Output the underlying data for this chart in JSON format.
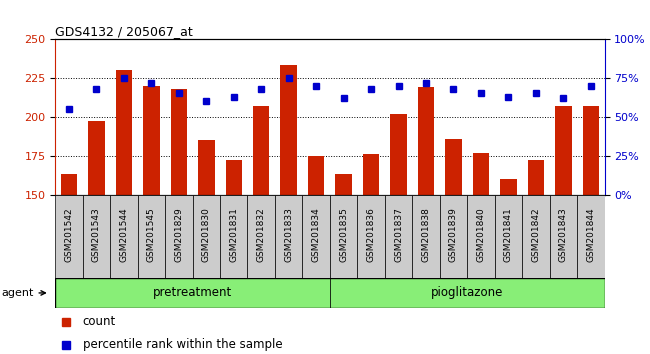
{
  "title": "GDS4132 / 205067_at",
  "categories": [
    "GSM201542",
    "GSM201543",
    "GSM201544",
    "GSM201545",
    "GSM201829",
    "GSM201830",
    "GSM201831",
    "GSM201832",
    "GSM201833",
    "GSM201834",
    "GSM201835",
    "GSM201836",
    "GSM201837",
    "GSM201838",
    "GSM201839",
    "GSM201840",
    "GSM201841",
    "GSM201842",
    "GSM201843",
    "GSM201844"
  ],
  "bar_values": [
    163,
    197,
    230,
    220,
    218,
    185,
    172,
    207,
    233,
    175,
    163,
    176,
    202,
    219,
    186,
    177,
    160,
    172,
    207,
    207
  ],
  "dot_values": [
    55,
    68,
    75,
    72,
    65,
    60,
    63,
    68,
    75,
    70,
    62,
    68,
    70,
    72,
    68,
    65,
    63,
    65,
    62,
    70
  ],
  "ylim_left": [
    150,
    250
  ],
  "ylim_right": [
    0,
    100
  ],
  "yticks_left": [
    150,
    175,
    200,
    225,
    250
  ],
  "yticks_right": [
    0,
    25,
    50,
    75,
    100
  ],
  "grid_lines": [
    175,
    200,
    225
  ],
  "bar_color": "#cc2200",
  "dot_color": "#0000cc",
  "tick_bg_color": "#cccccc",
  "pretreatment_color": "#88ee77",
  "pioglitazone_color": "#88ee77",
  "band_border_color": "#000000",
  "agent_label": "agent",
  "pretreatment_label": "pretreatment",
  "pioglitazone_label": "pioglitazone",
  "legend_count": "count",
  "legend_percentile": "percentile rank within the sample",
  "n_pretreatment": 10,
  "n_pioglitazone": 10
}
